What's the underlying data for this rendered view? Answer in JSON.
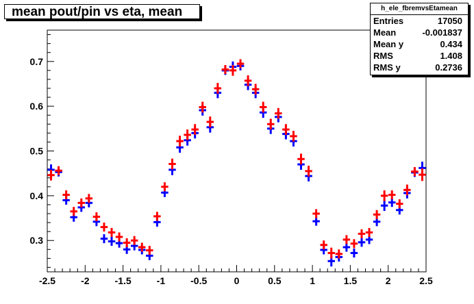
{
  "title": "mean pout/pin vs eta, mean",
  "stats": {
    "name": "h_ele_fbremvsEtamean",
    "rows": [
      {
        "key": "Entries",
        "value": "17050"
      },
      {
        "key": "Mean",
        "value": "-0.001837"
      },
      {
        "key": "Mean y",
        "value": "0.434"
      },
      {
        "key": "RMS",
        "value": "1.408"
      },
      {
        "key": "RMS y",
        "value": "0.2736"
      }
    ]
  },
  "chart_data": {
    "type": "scatter",
    "xlim": [
      -2.5,
      2.5
    ],
    "ylim": [
      0.23,
      0.77
    ],
    "x_ticks": [
      "-2.5",
      "-2",
      "-1.5",
      "-1",
      "-0.5",
      "0",
      "0.5",
      "1",
      "1.5",
      "2",
      "2.5"
    ],
    "y_ticks": [
      "0.3",
      "0.4",
      "0.5",
      "0.6",
      "0.7"
    ],
    "x": [
      -2.45,
      -2.35,
      -2.25,
      -2.15,
      -2.05,
      -1.95,
      -1.85,
      -1.75,
      -1.65,
      -1.55,
      -1.45,
      -1.35,
      -1.25,
      -1.15,
      -1.05,
      -0.95,
      -0.85,
      -0.75,
      -0.65,
      -0.55,
      -0.45,
      -0.35,
      -0.25,
      -0.15,
      -0.05,
      0.05,
      0.15,
      0.25,
      0.35,
      0.45,
      0.55,
      0.65,
      0.75,
      0.85,
      0.95,
      1.05,
      1.15,
      1.25,
      1.35,
      1.45,
      1.55,
      1.65,
      1.75,
      1.85,
      1.95,
      2.05,
      2.15,
      2.25,
      2.35,
      2.45
    ],
    "series": [
      {
        "color": "#0000ff",
        "values": [
          0.458,
          0.453,
          0.39,
          0.352,
          0.374,
          0.384,
          0.342,
          0.304,
          0.298,
          0.294,
          0.28,
          0.288,
          0.279,
          0.266,
          0.341,
          0.407,
          0.458,
          0.508,
          0.524,
          0.54,
          0.591,
          0.553,
          0.63,
          0.68,
          0.688,
          0.69,
          0.648,
          0.63,
          0.586,
          0.55,
          0.576,
          0.538,
          0.522,
          0.47,
          0.444,
          0.343,
          0.279,
          0.254,
          0.263,
          0.285,
          0.272,
          0.296,
          0.302,
          0.342,
          0.378,
          0.385,
          0.368,
          0.406,
          0.452,
          0.462
        ],
        "err": [
          0.012,
          0.01,
          0.01,
          0.01,
          0.01,
          0.01,
          0.01,
          0.01,
          0.01,
          0.01,
          0.01,
          0.01,
          0.01,
          0.01,
          0.01,
          0.01,
          0.012,
          0.012,
          0.012,
          0.012,
          0.012,
          0.012,
          0.012,
          0.01,
          0.012,
          0.01,
          0.012,
          0.012,
          0.012,
          0.012,
          0.012,
          0.012,
          0.012,
          0.012,
          0.012,
          0.01,
          0.01,
          0.012,
          0.01,
          0.01,
          0.01,
          0.01,
          0.01,
          0.01,
          0.012,
          0.01,
          0.01,
          0.012,
          0.01,
          0.014
        ]
      },
      {
        "color": "#ff0000",
        "values": [
          0.446,
          0.456,
          0.402,
          0.365,
          0.384,
          0.394,
          0.353,
          0.33,
          0.318,
          0.308,
          0.295,
          0.3,
          0.285,
          0.278,
          0.354,
          0.42,
          0.471,
          0.522,
          0.536,
          0.548,
          0.598,
          0.565,
          0.64,
          0.682,
          0.68,
          0.695,
          0.657,
          0.638,
          0.598,
          0.56,
          0.584,
          0.548,
          0.533,
          0.482,
          0.455,
          0.36,
          0.29,
          0.272,
          0.27,
          0.302,
          0.293,
          0.315,
          0.318,
          0.358,
          0.4,
          0.402,
          0.382,
          0.413,
          0.454,
          0.447
        ],
        "err": [
          0.012,
          0.01,
          0.01,
          0.01,
          0.01,
          0.01,
          0.01,
          0.01,
          0.01,
          0.01,
          0.01,
          0.01,
          0.01,
          0.01,
          0.01,
          0.01,
          0.012,
          0.012,
          0.012,
          0.012,
          0.012,
          0.012,
          0.012,
          0.01,
          0.012,
          0.01,
          0.012,
          0.012,
          0.012,
          0.012,
          0.012,
          0.012,
          0.012,
          0.012,
          0.012,
          0.01,
          0.01,
          0.012,
          0.01,
          0.01,
          0.01,
          0.01,
          0.01,
          0.01,
          0.012,
          0.01,
          0.01,
          0.012,
          0.01,
          0.014
        ]
      }
    ]
  }
}
